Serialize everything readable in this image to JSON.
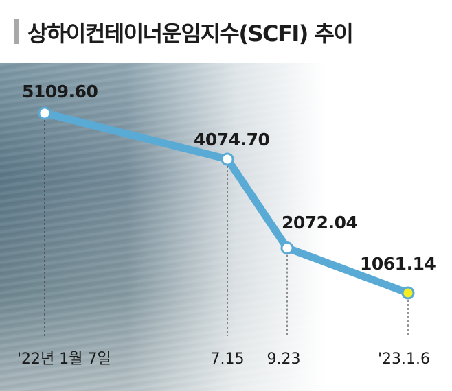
{
  "chart_data": {
    "type": "line",
    "title": "상하이컨테이너운임지수(SCFI) 추이",
    "categories": [
      "'22년 1월 7일",
      "7.15",
      "9.23",
      "'23.1.6"
    ],
    "values": [
      5109.6,
      4074.7,
      2072.04,
      1061.14
    ],
    "value_labels": [
      "5109.60",
      "4074.70",
      "2072.04",
      "1061.14"
    ],
    "colors": {
      "line": "#5aaad6",
      "marker_fill": "#ffffff",
      "last_marker_fill": "#f6ee1f",
      "background_sea": "#6f8a98"
    },
    "grid": false
  }
}
